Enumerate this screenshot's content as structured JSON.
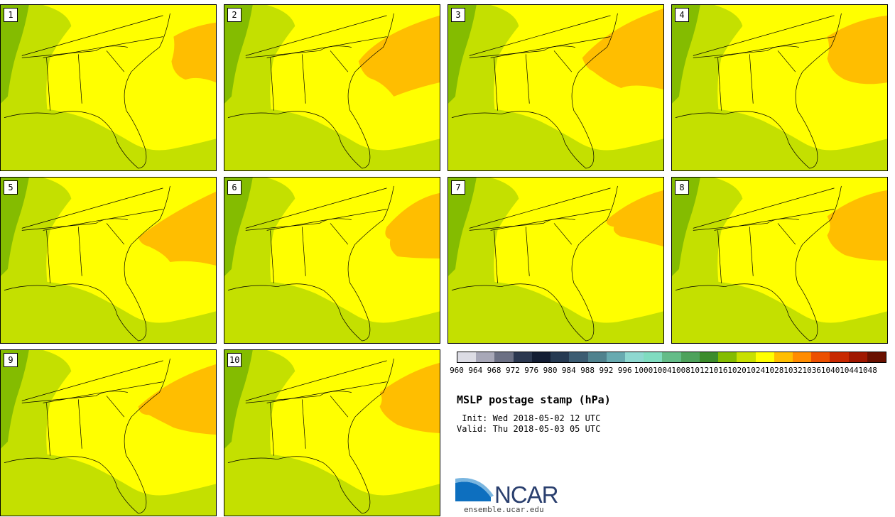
{
  "panels": [
    {
      "label": "1"
    },
    {
      "label": "2"
    },
    {
      "label": "3"
    },
    {
      "label": "4"
    },
    {
      "label": "5"
    },
    {
      "label": "6"
    },
    {
      "label": "7"
    },
    {
      "label": "8"
    },
    {
      "label": "9"
    },
    {
      "label": "10"
    }
  ],
  "colorbar": {
    "colors": [
      "#dcdce4",
      "#a8a8b8",
      "#6c7084",
      "#2c3850",
      "#141e34",
      "#263a52",
      "#3c5c72",
      "#50828e",
      "#68aab0",
      "#8ed8d0",
      "#80dcc0",
      "#64bc88",
      "#4ea25c",
      "#3c8c2c",
      "#84bc00",
      "#c8e000",
      "#ffff00",
      "#ffbe00",
      "#ff8c00",
      "#ec5000",
      "#c82800",
      "#a01800",
      "#6a1000"
    ],
    "ticks": [
      "960",
      "964",
      "968",
      "972",
      "976",
      "980",
      "984",
      "988",
      "992",
      "996",
      "1000",
      "1004",
      "1008",
      "1012",
      "1016",
      "1020",
      "1024",
      "1028",
      "1032",
      "1036",
      "1040",
      "1044",
      "1048"
    ]
  },
  "title": "MSLP postage stamp (hPa)",
  "init": " Init: Wed 2018-05-02 12 UTC",
  "valid": "Valid: Thu 2018-05-03 05 UTC",
  "logo": {
    "word": "NCAR",
    "url": "ensemble.ucar.edu"
  },
  "map_colors": {
    "ocean_low": "#c4e000",
    "green_mid": "#84bc00",
    "high": "#ffff00",
    "orange": "#ffbe00"
  }
}
